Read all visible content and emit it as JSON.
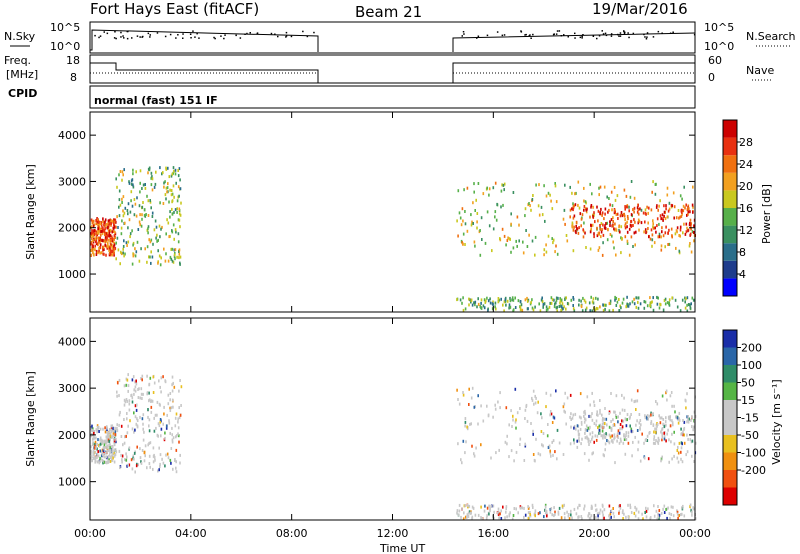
{
  "header": {
    "title": "Fort Hays East (fitACF)",
    "beam": "Beam 21",
    "date": "19/Mar/2016"
  },
  "params": {
    "nsky_label": "N.Sky",
    "nsearch_label": "N.Search",
    "freq_label_1": "Freq.",
    "freq_label_2": "[MHz]",
    "nave_label": "Nave",
    "cpid_label": "CPID",
    "cpid_value": "normal (fast) 151 IF",
    "noise_ticks": [
      "10^5",
      "10^0"
    ],
    "noise_right_ticks": [
      "10^5",
      "10^0"
    ],
    "freq_ticks": [
      "18",
      "8"
    ],
    "nave_ticks": [
      "60",
      "0"
    ]
  },
  "colors": {
    "power": [
      "#0000ff",
      "#1e3c8c",
      "#2a6e8a",
      "#3a9060",
      "#57b04a",
      "#c9c81f",
      "#f2a020",
      "#f07010",
      "#e83010",
      "#cc0000"
    ],
    "velocity": [
      "#1a2ea8",
      "#2a66a8",
      "#2f8c68",
      "#55b545",
      "#c8c8c8",
      "#c8c8c8",
      "#e8c020",
      "#f09010",
      "#f05010",
      "#dd0000"
    ],
    "ground": "#a0a0a0"
  },
  "chart_data": [
    {
      "type": "heatmap",
      "name": "power",
      "ylabel": "Slant Range [km]",
      "xlabel": "",
      "ylim": [
        180,
        4500
      ],
      "yticks": [
        1000,
        2000,
        3000,
        4000
      ],
      "colorbar": {
        "label": "Power [dB]",
        "range": [
          0,
          32
        ],
        "ticks": [
          4,
          8,
          12,
          16,
          20,
          24,
          28
        ]
      },
      "scatter_bands": [
        {
          "t": [
            0.0,
            1.0
          ],
          "r": [
            1400,
            2200
          ],
          "level": 0.85
        },
        {
          "t": [
            1.0,
            3.6
          ],
          "r": [
            1200,
            3300
          ],
          "level": 0.45
        },
        {
          "t": [
            14.5,
            24.0
          ],
          "r": [
            1400,
            3000
          ],
          "level": 0.55
        },
        {
          "t": [
            19.0,
            24.0
          ],
          "r": [
            1800,
            2500
          ],
          "level": 0.9
        },
        {
          "t": [
            14.5,
            24.0
          ],
          "r": [
            200,
            500
          ],
          "level": 0.4
        }
      ]
    },
    {
      "type": "heatmap",
      "name": "velocity",
      "ylabel": "Slant Range [km]",
      "xlabel": "Time UT",
      "ylim": [
        180,
        4500
      ],
      "yticks": [
        1000,
        2000,
        3000,
        4000
      ],
      "x_ticks": [
        "00:00",
        "04:00",
        "08:00",
        "12:00",
        "16:00",
        "20:00",
        "00:00"
      ],
      "colorbar": {
        "label": "Velocity [m s⁻¹]",
        "ticks": [
          "200",
          "100",
          "50",
          "15",
          "-15",
          "-50",
          "-100",
          "-200"
        ]
      }
    }
  ]
}
